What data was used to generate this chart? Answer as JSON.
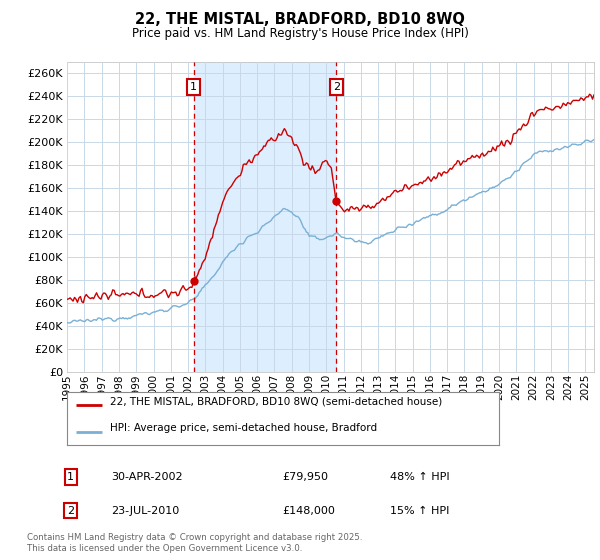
{
  "title": "22, THE MISTAL, BRADFORD, BD10 8WQ",
  "subtitle": "Price paid vs. HM Land Registry's House Price Index (HPI)",
  "bg_color": "#ffffff",
  "plot_bg_color": "#ffffff",
  "grid_color": "#c8d8e8",
  "shade_color": "#ddeeff",
  "line1_color": "#cc0000",
  "line2_color": "#7ab0d4",
  "vline_color": "#cc0000",
  "sale1_year": 2002.33,
  "sale2_year": 2010.58,
  "sale1_price": 79950,
  "sale2_price": 148000,
  "legend_line1": "22, THE MISTAL, BRADFORD, BD10 8WQ (semi-detached house)",
  "legend_line2": "HPI: Average price, semi-detached house, Bradford",
  "annotation1_date": "30-APR-2002",
  "annotation1_price": "£79,950",
  "annotation1_hpi": "48% ↑ HPI",
  "annotation2_date": "23-JUL-2010",
  "annotation2_price": "£148,000",
  "annotation2_hpi": "15% ↑ HPI",
  "footer": "Contains HM Land Registry data © Crown copyright and database right 2025.\nThis data is licensed under the Open Government Licence v3.0.",
  "xmin": 1995,
  "xmax": 2025.5,
  "ylim": [
    0,
    270000
  ],
  "yticks": [
    0,
    20000,
    40000,
    60000,
    80000,
    100000,
    120000,
    140000,
    160000,
    180000,
    200000,
    220000,
    240000,
    260000
  ]
}
